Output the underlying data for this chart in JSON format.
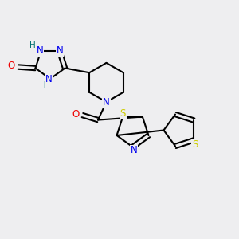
{
  "background_color": "#eeeef0",
  "atom_colors": {
    "C": "#000000",
    "N": "#0000ee",
    "O": "#ee0000",
    "S": "#cccc00",
    "H": "#007070"
  },
  "bond_color": "#000000",
  "bond_width": 1.5,
  "font_size_atom": 8.5,
  "font_size_H": 7.5
}
